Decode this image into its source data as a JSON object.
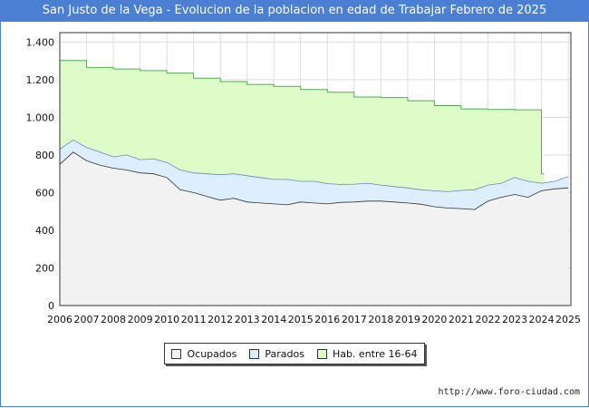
{
  "chart_data": {
    "type": "area",
    "title": "San Justo de la Vega - Evolucion de la poblacion en edad de Trabajar Febrero de 2025",
    "xlabel": "",
    "ylabel": "",
    "xlim": [
      2006,
      2025.1
    ],
    "ylim": [
      0,
      1450
    ],
    "y_ticks": [
      0,
      200,
      400,
      600,
      800,
      1000,
      1200,
      1400
    ],
    "y_tick_labels": [
      "0",
      "200",
      "400",
      "600",
      "800",
      "1.000",
      "1.200",
      "1.400"
    ],
    "x_tick_labels": [
      "2006",
      "2007",
      "2008",
      "2009",
      "2010",
      "2011",
      "2012",
      "2013",
      "2014",
      "2015",
      "2016",
      "2017",
      "2018",
      "2019",
      "2020",
      "2021",
      "2022",
      "2023",
      "2024",
      "2025"
    ],
    "grid": true,
    "legend_position": "bottom-center",
    "colors": {
      "ocupados_fill": "#f2f2f2",
      "parados_fill": "#ddeeff",
      "hab_fill": "#ddfcc8",
      "hab_line": "#55aa55",
      "parados_line": "#6688cc",
      "ocupados_line": "#333333",
      "grid": "#dddddd",
      "axis": "#333333",
      "title_bg": "#4a7fd4"
    },
    "series": [
      {
        "name": "Hab. entre 16-64",
        "x": [
          2006.0,
          2007.0,
          2007.0,
          2008.0,
          2008.0,
          2009.0,
          2009.0,
          2010.0,
          2010.0,
          2011.0,
          2011.0,
          2012.0,
          2012.0,
          2013.0,
          2013.0,
          2014.0,
          2014.0,
          2015.0,
          2015.0,
          2016.0,
          2016.0,
          2017.0,
          2017.0,
          2018.0,
          2018.0,
          2019.0,
          2019.0,
          2020.0,
          2020.0,
          2021.0,
          2021.0,
          2022.0,
          2022.0,
          2023.0,
          2023.0,
          2024.0,
          2024.0,
          2024.1
        ],
        "values": [
          1302,
          1302,
          1265,
          1265,
          1257,
          1257,
          1248,
          1248,
          1235,
          1235,
          1208,
          1208,
          1190,
          1190,
          1175,
          1175,
          1165,
          1165,
          1148,
          1148,
          1133,
          1133,
          1108,
          1108,
          1105,
          1105,
          1088,
          1088,
          1062,
          1062,
          1045,
          1045,
          1042,
          1042,
          1040,
          1040,
          700,
          700
        ]
      },
      {
        "name": "Parados",
        "x": [
          2006.0,
          2006.5,
          2007.0,
          2007.5,
          2008.0,
          2008.5,
          2009.0,
          2009.5,
          2010.0,
          2010.5,
          2011.0,
          2011.5,
          2012.0,
          2012.5,
          2013.0,
          2013.5,
          2014.0,
          2014.5,
          2015.0,
          2015.5,
          2016.0,
          2016.5,
          2017.0,
          2017.5,
          2018.0,
          2018.5,
          2019.0,
          2019.5,
          2020.0,
          2020.5,
          2021.0,
          2021.5,
          2022.0,
          2022.5,
          2023.0,
          2023.5,
          2024.0,
          2024.5,
          2025.0
        ],
        "values": [
          830,
          880,
          840,
          815,
          790,
          800,
          775,
          780,
          760,
          720,
          705,
          700,
          695,
          700,
          690,
          680,
          670,
          670,
          660,
          660,
          648,
          643,
          645,
          650,
          640,
          632,
          625,
          615,
          610,
          605,
          612,
          615,
          640,
          650,
          680,
          660,
          650,
          660,
          685
        ]
      },
      {
        "name": "Ocupados",
        "x": [
          2006.0,
          2006.5,
          2007.0,
          2007.5,
          2008.0,
          2008.5,
          2009.0,
          2009.5,
          2010.0,
          2010.5,
          2011.0,
          2011.5,
          2012.0,
          2012.5,
          2013.0,
          2013.5,
          2014.0,
          2014.5,
          2015.0,
          2015.5,
          2016.0,
          2016.5,
          2017.0,
          2017.5,
          2018.0,
          2018.5,
          2019.0,
          2019.5,
          2020.0,
          2020.5,
          2021.0,
          2021.5,
          2022.0,
          2022.5,
          2023.0,
          2023.5,
          2024.0,
          2024.5,
          2025.0
        ],
        "values": [
          750,
          815,
          770,
          745,
          730,
          720,
          705,
          700,
          680,
          615,
          600,
          580,
          560,
          570,
          550,
          545,
          540,
          535,
          550,
          545,
          540,
          548,
          550,
          555,
          555,
          550,
          545,
          538,
          525,
          518,
          515,
          510,
          555,
          575,
          590,
          575,
          610,
          620,
          625
        ]
      }
    ]
  },
  "legend": {
    "ocupados": "Ocupados",
    "parados": "Parados",
    "hab": "Hab. entre 16-64"
  },
  "footer": {
    "source": "http://www.foro-ciudad.com",
    "watermark": "FORO-CIUDAD.COM"
  }
}
